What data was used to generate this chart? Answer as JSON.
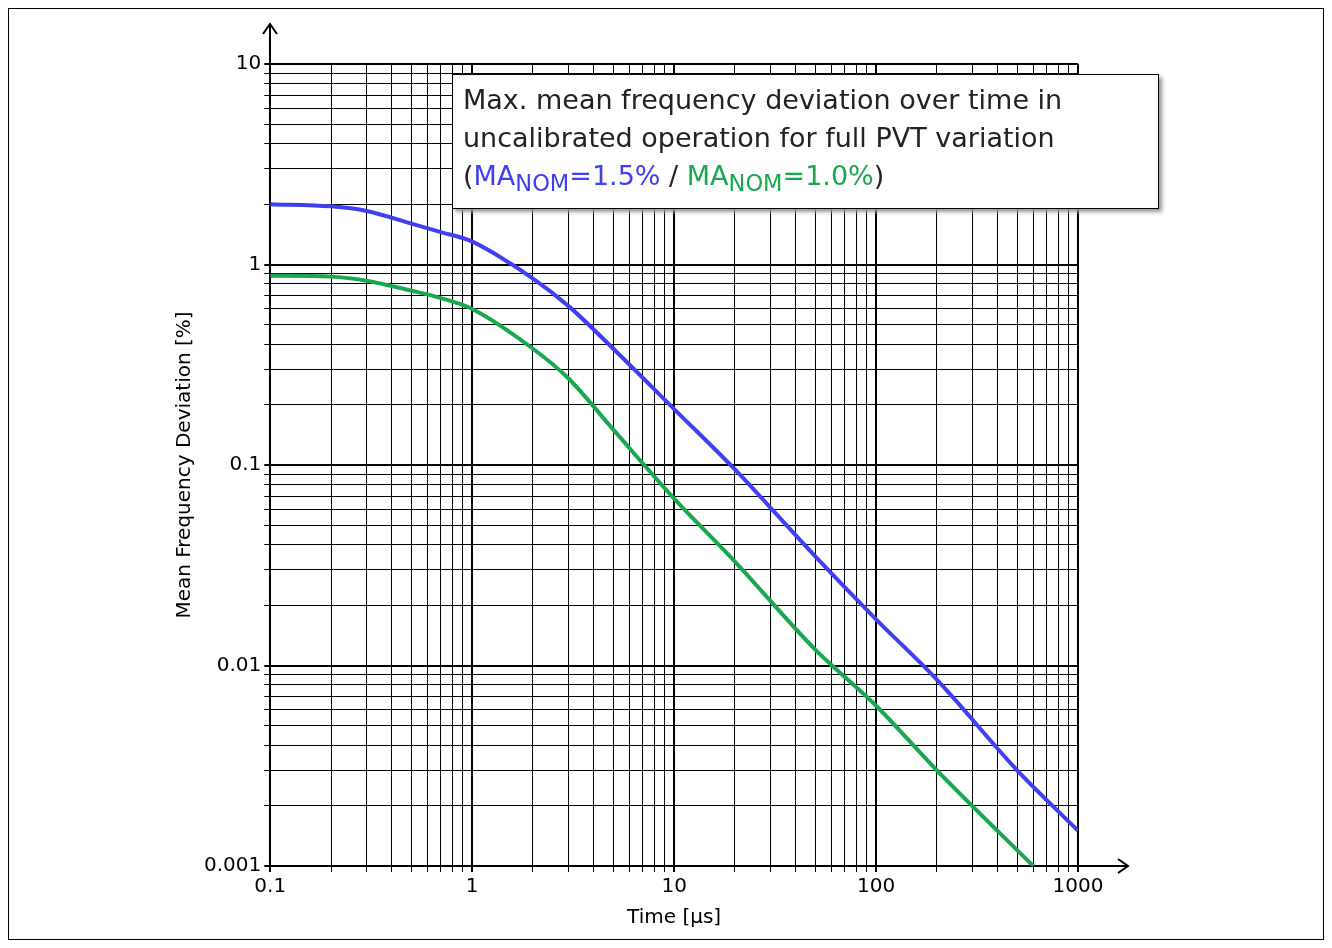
{
  "chart_data": {
    "type": "line",
    "xlabel": "Time [µs]",
    "ylabel": "Mean Frequency Deviation [%]",
    "legend_title": "Max. mean frequency deviation over time in uncalibrated operation for full PVT variation (",
    "annotations": [
      "/",
      ")"
    ],
    "legend": "top right",
    "log": "xy",
    "grid": true,
    "xlim": [
      0.1,
      1000
    ],
    "ylim": [
      0.001,
      10
    ],
    "xticks": [
      0.1,
      1,
      10,
      100,
      1000
    ],
    "yticks": [
      0.001,
      0.01,
      0.1,
      1,
      10
    ],
    "series": [
      {
        "name": "MA$_{NOM}$=1.5%",
        "color": "#4040f0",
        "x": [
          0.1,
          0.2,
          0.3,
          0.5,
          0.7,
          1,
          2,
          3,
          5,
          10,
          20,
          50,
          100,
          200,
          500,
          1000
        ],
        "values": [
          2.0,
          1.95,
          1.85,
          1.6,
          1.45,
          1.3,
          0.85,
          0.62,
          0.38,
          0.19,
          0.095,
          0.035,
          0.017,
          0.0085,
          0.003,
          0.0015
        ]
      },
      {
        "name": "MA$_{NOM}$=1.0%",
        "color": "#1aa84e",
        "x": [
          0.1,
          0.2,
          0.3,
          0.5,
          0.7,
          1,
          2,
          3,
          5,
          10,
          20,
          50,
          100,
          200,
          600
        ],
        "values": [
          0.88,
          0.87,
          0.83,
          0.74,
          0.68,
          0.6,
          0.38,
          0.27,
          0.15,
          0.068,
          0.033,
          0.012,
          0.0063,
          0.003,
          0.001
        ]
      }
    ]
  }
}
